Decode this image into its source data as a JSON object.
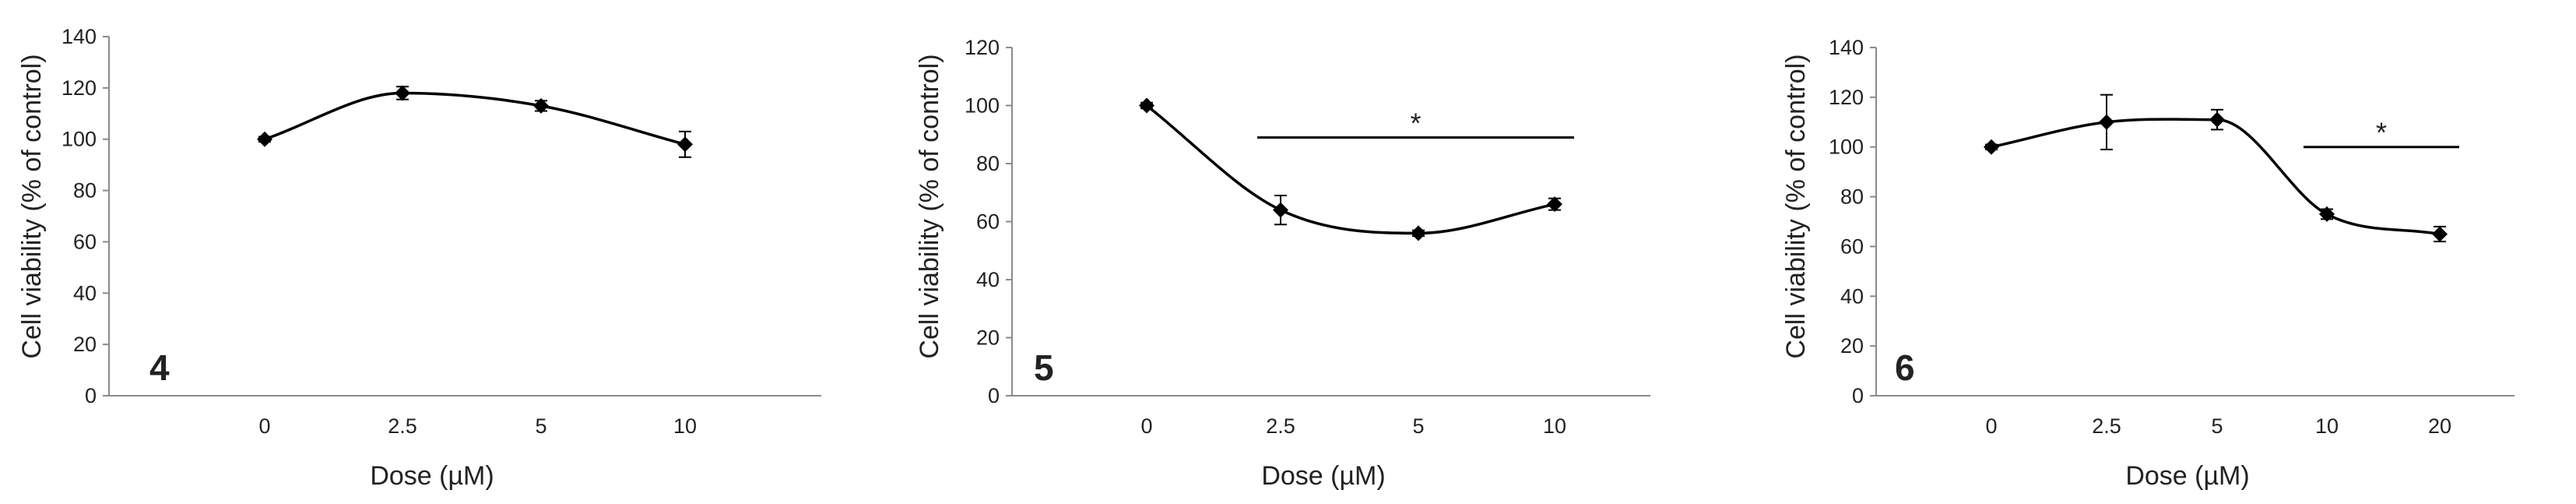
{
  "chart_data": [
    {
      "type": "line",
      "panel_label": "4",
      "xlabel": "Dose (µM)",
      "ylabel": "Cell viability (% of control)",
      "categories": [
        "0",
        "2.5",
        "5",
        "10"
      ],
      "values": [
        100,
        118,
        113,
        98
      ],
      "errors": [
        1,
        2.5,
        2,
        5
      ],
      "ylim": [
        0,
        140
      ],
      "yticks": [
        0,
        20,
        40,
        60,
        80,
        100,
        120,
        140
      ],
      "significance": null
    },
    {
      "type": "line",
      "panel_label": "5",
      "xlabel": "Dose (µM)",
      "ylabel": "Cell viability (% of control)",
      "categories": [
        "0",
        "2.5",
        "5",
        "10"
      ],
      "values": [
        100,
        64,
        56,
        66
      ],
      "errors": [
        1,
        5,
        1,
        2
      ],
      "ylim": [
        0,
        120
      ],
      "yticks": [
        0,
        20,
        40,
        60,
        80,
        100,
        120
      ],
      "significance": {
        "label": "*",
        "from_category": 1,
        "to_category": 3,
        "y": 89
      }
    },
    {
      "type": "line",
      "panel_label": "6",
      "xlabel": "Dose (µM)",
      "ylabel": "Cell viability (% of control)",
      "categories": [
        "0",
        "2.5",
        "5",
        "10",
        "20"
      ],
      "values": [
        100,
        110,
        111,
        73,
        65
      ],
      "errors": [
        1,
        11,
        4,
        2,
        3
      ],
      "ylim": [
        0,
        140
      ],
      "yticks": [
        0,
        20,
        40,
        60,
        80,
        100,
        120,
        140
      ],
      "significance": {
        "label": "*",
        "from_category": 3,
        "to_category": 4,
        "y": 100
      }
    }
  ]
}
